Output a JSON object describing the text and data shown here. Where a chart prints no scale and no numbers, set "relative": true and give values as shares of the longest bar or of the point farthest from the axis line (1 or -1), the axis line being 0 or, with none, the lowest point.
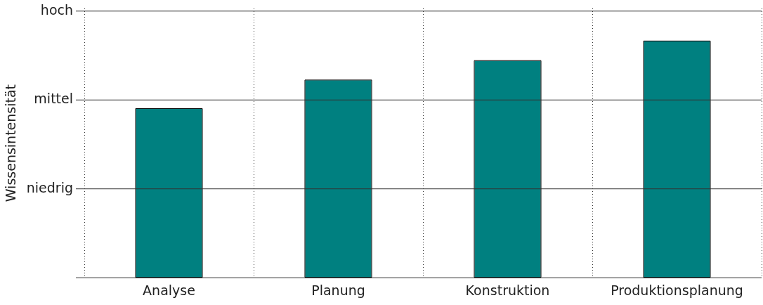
{
  "chart_data": {
    "type": "bar",
    "ylabel": "Wissensintensität",
    "categories": [
      "Analyse",
      "Planung",
      "Konstruktion",
      "Produktionsplanung"
    ],
    "values": [
      0.714,
      0.835,
      0.917,
      1
    ],
    "color": "#008080",
    "relative": true,
    "ref_lines": [
      {
        "axis": "y",
        "value": 0.376,
        "label": "niedrig"
      },
      {
        "axis": "y",
        "value": 0.752,
        "label": "mittel"
      },
      {
        "axis": "y",
        "value": 1.128,
        "label": "hoch"
      }
    ],
    "grid": "x"
  }
}
